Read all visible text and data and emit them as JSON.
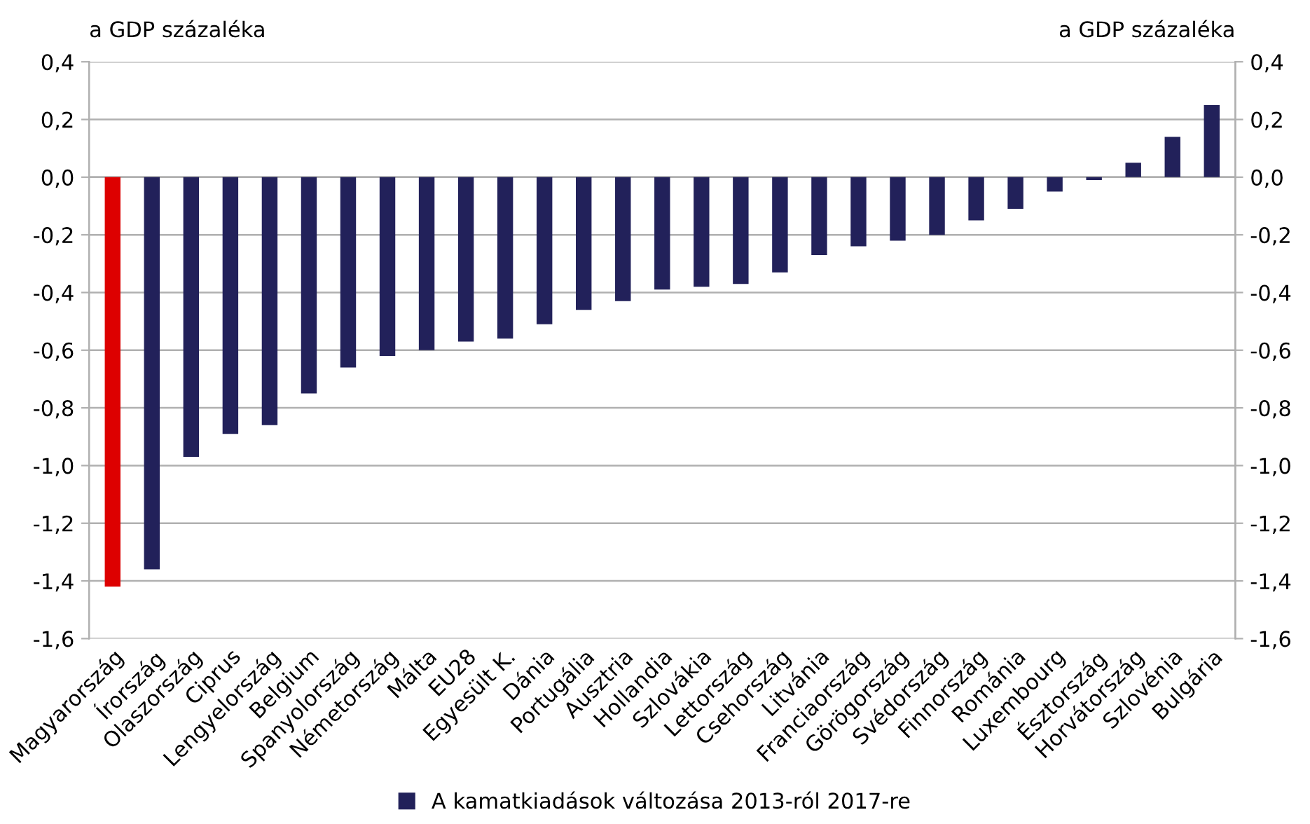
{
  "chart_data": {
    "type": "bar",
    "categories": [
      "Magyarország",
      "Írország",
      "Olaszország",
      "Ciprus",
      "Lengyelország",
      "Belgium",
      "Spanyolország",
      "Németország",
      "Málta",
      "EU28",
      "Egyesült K.",
      "Dánia",
      "Portugália",
      "Ausztria",
      "Hollandia",
      "Szlovákia",
      "Lettország",
      "Csehország",
      "Litvánia",
      "Franciaország",
      "Görögország",
      "Svédország",
      "Finnország",
      "Románia",
      "Luxembourg",
      "Észtország",
      "Horvátország",
      "Szlovénia",
      "Bulgária"
    ],
    "series": [
      {
        "name": "A kamatkiadások változása 2013-ról 2017-re",
        "color": "#22215a",
        "colors": [
          "#dd0000",
          "#22215a",
          "#22215a",
          "#22215a",
          "#22215a",
          "#22215a",
          "#22215a",
          "#22215a",
          "#22215a",
          "#22215a",
          "#22215a",
          "#22215a",
          "#22215a",
          "#22215a",
          "#22215a",
          "#22215a",
          "#22215a",
          "#22215a",
          "#22215a",
          "#22215a",
          "#22215a",
          "#22215a",
          "#22215a",
          "#22215a",
          "#22215a",
          "#22215a",
          "#22215a",
          "#22215a",
          "#22215a"
        ],
        "values": [
          -1.42,
          -1.36,
          -0.97,
          -0.89,
          -0.86,
          -0.75,
          -0.66,
          -0.62,
          -0.6,
          -0.57,
          -0.56,
          -0.51,
          -0.46,
          -0.43,
          -0.39,
          -0.38,
          -0.37,
          -0.33,
          -0.27,
          -0.24,
          -0.22,
          -0.2,
          -0.15,
          -0.11,
          -0.05,
          -0.01,
          0.05,
          0.14,
          0.25
        ]
      }
    ],
    "ylabel": "a GDP százaléka",
    "y2label": "a GDP százaléka",
    "ylim": [
      -1.6,
      0.4
    ],
    "yticks": [
      {
        "value": -1.6,
        "label": "-1,6"
      },
      {
        "value": -1.4,
        "label": "-1,4"
      },
      {
        "value": -1.2,
        "label": "-1,2"
      },
      {
        "value": -1.0,
        "label": "-1,0"
      },
      {
        "value": -0.8,
        "label": "-0,8"
      },
      {
        "value": -0.6,
        "label": "-0,6"
      },
      {
        "value": -0.4,
        "label": "-0,4"
      },
      {
        "value": -0.2,
        "label": "-0,2"
      },
      {
        "value": 0.0,
        "label": "0,0"
      },
      {
        "value": 0.2,
        "label": "0,2"
      },
      {
        "value": 0.4,
        "label": "0,4"
      }
    ],
    "y2lim": [
      -1.6,
      0.4
    ],
    "y2ticks": [
      {
        "value": -1.6,
        "label": "-1,6"
      },
      {
        "value": -1.4,
        "label": "-1,4"
      },
      {
        "value": -1.2,
        "label": "-1,2"
      },
      {
        "value": -1.0,
        "label": "-1,0"
      },
      {
        "value": -0.8,
        "label": "-0,8"
      },
      {
        "value": -0.6,
        "label": "-0,6"
      },
      {
        "value": -0.4,
        "label": "-0,4"
      },
      {
        "value": -0.2,
        "label": "-0,2"
      },
      {
        "value": 0.0,
        "label": "0,0"
      },
      {
        "value": 0.2,
        "label": "0,2"
      },
      {
        "value": 0.4,
        "label": "0,4"
      }
    ],
    "grid": "y",
    "legend": "bottom"
  }
}
